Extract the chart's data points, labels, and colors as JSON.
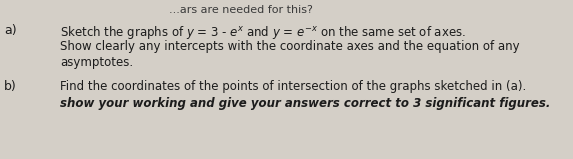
{
  "background_color": "#d4cfc7",
  "label_a": "a)",
  "label_b": "b)",
  "header": "...ars are needed for this?",
  "a_line1": "Sketch the graphs of $y$ = 3 - $e^x$ and $y$ = $e^{-x}$ on the same set of axes.",
  "a_line2": "Show clearly any intercepts with the coordinate axes and the equation of any",
  "a_line3": "asymptotes.",
  "b_line1": "Find the coordinates of the points of intersection of the graphs sketched in (a).",
  "b_line2": "show your working and give your answers correct to 3 significant figures.",
  "text_color": "#1c1c1c",
  "header_color": "#3a3a3a",
  "font_size": 8.5,
  "label_font_size": 9.0,
  "figw": 5.73,
  "figh": 1.59,
  "dpi": 100
}
